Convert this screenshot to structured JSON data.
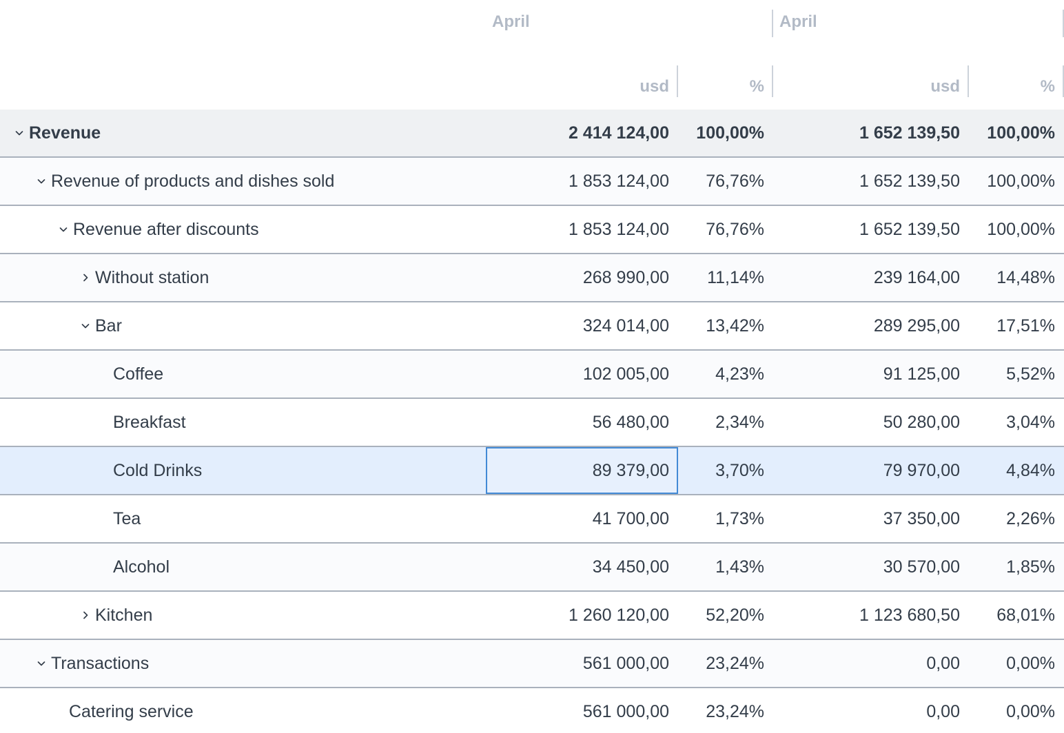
{
  "report": {
    "column_groups": [
      {
        "period": "April",
        "columns": [
          "usd",
          "%"
        ]
      },
      {
        "period": "April",
        "columns": [
          "usd",
          "%"
        ]
      }
    ],
    "rows": [
      {
        "name": "Revenue",
        "depth": 0,
        "expand_state": "expanded",
        "bold": true,
        "values": [
          "2 414 124,00",
          "100,00%",
          "1 652 139,50",
          "100,00%"
        ]
      },
      {
        "name": "Revenue of products and dishes sold",
        "depth": 1,
        "expand_state": "expanded",
        "bold": false,
        "values": [
          "1 853 124,00",
          "76,76%",
          "1 652 139,50",
          "100,00%"
        ]
      },
      {
        "name": "Revenue after discounts",
        "depth": 2,
        "expand_state": "expanded",
        "bold": false,
        "values": [
          "1 853 124,00",
          "76,76%",
          "1 652 139,50",
          "100,00%"
        ]
      },
      {
        "name": "Without station",
        "depth": 3,
        "expand_state": "collapsed",
        "bold": false,
        "values": [
          "268 990,00",
          "11,14%",
          "239 164,00",
          "14,48%"
        ]
      },
      {
        "name": "Bar",
        "depth": 3,
        "expand_state": "expanded",
        "bold": false,
        "values": [
          "324 014,00",
          "13,42%",
          "289 295,00",
          "17,51%"
        ]
      },
      {
        "name": "Coffee",
        "depth": 4,
        "expand_state": "none",
        "bold": false,
        "values": [
          "102 005,00",
          "4,23%",
          "91 125,00",
          "5,52%"
        ]
      },
      {
        "name": "Breakfast",
        "depth": 4,
        "expand_state": "none",
        "bold": false,
        "values": [
          "56 480,00",
          "2,34%",
          "50 280,00",
          "3,04%"
        ]
      },
      {
        "name": "Cold Drinks",
        "depth": 4,
        "expand_state": "none",
        "bold": false,
        "selected": true,
        "selected_cell_index": 0,
        "values": [
          "89 379,00",
          "3,70%",
          "79 970,00",
          "4,84%"
        ]
      },
      {
        "name": "Tea",
        "depth": 4,
        "expand_state": "none",
        "bold": false,
        "values": [
          "41 700,00",
          "1,73%",
          "37 350,00",
          "2,26%"
        ]
      },
      {
        "name": "Alcohol",
        "depth": 4,
        "expand_state": "none",
        "bold": false,
        "values": [
          "34 450,00",
          "1,43%",
          "30 570,00",
          "1,85%"
        ]
      },
      {
        "name": "Kitchen",
        "depth": 3,
        "expand_state": "collapsed",
        "bold": false,
        "values": [
          "1 260 120,00",
          "52,20%",
          "1 123 680,50",
          "68,01%"
        ]
      },
      {
        "name": "Transactions",
        "depth": 1,
        "expand_state": "expanded",
        "bold": false,
        "values": [
          "561 000,00",
          "23,24%",
          "0,00",
          "0,00%"
        ]
      },
      {
        "name": "Catering service",
        "depth": 2,
        "expand_state": "none",
        "bold": false,
        "values": [
          "561 000,00",
          "23,24%",
          "0,00",
          "0,00%"
        ]
      }
    ]
  },
  "selection": {
    "row": "Cold Drinks",
    "column": "usd",
    "group_index": 0,
    "value": "89 379,00"
  },
  "colors": {
    "text": "#333d49",
    "header_text": "#b2bac6",
    "row_border": "#a9b1bc",
    "total_row_bg": "#eff1f3",
    "alt_row_bg": "#fafbfd",
    "selected_row_bg": "#e3eefd",
    "selected_cell_border": "#4289d5"
  }
}
